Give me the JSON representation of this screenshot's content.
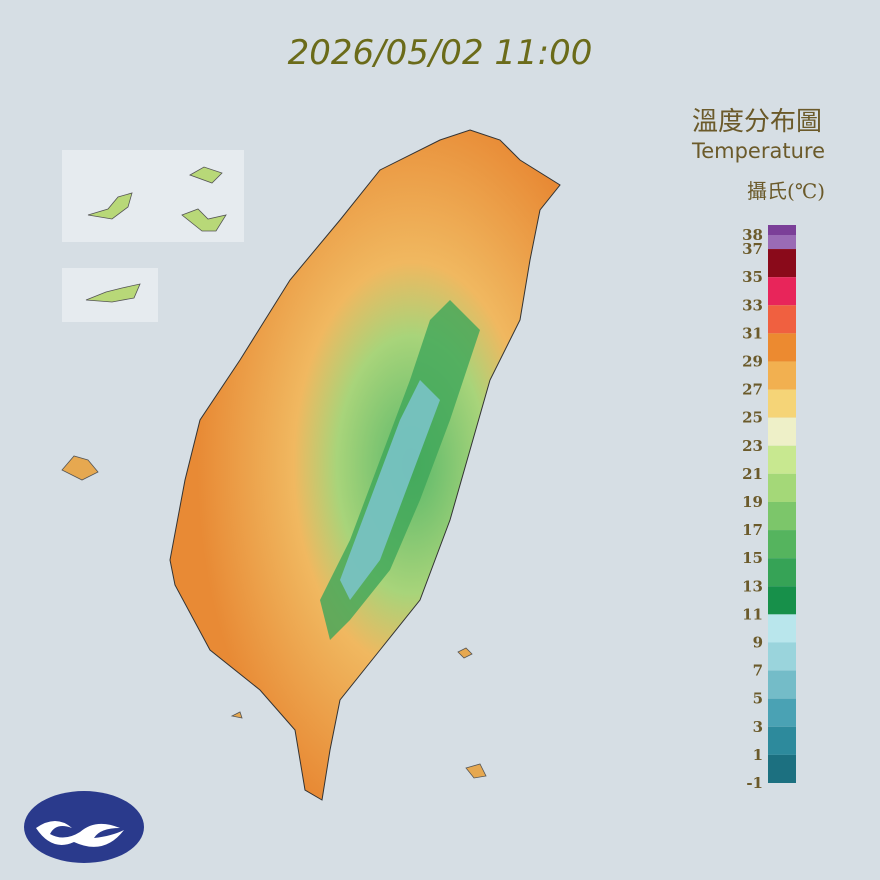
{
  "header": {
    "timestamp": "2026/05/02 11:00"
  },
  "legend": {
    "title_zh": "溫度分布圖",
    "title_en": "Temperature",
    "unit": "攝氏(℃)",
    "labels": [
      38,
      37,
      35,
      33,
      31,
      29,
      27,
      25,
      23,
      21,
      19,
      17,
      15,
      13,
      11,
      9,
      7,
      5,
      3,
      1,
      -1
    ],
    "colors": [
      "#7b3f98",
      "#9a6bb5",
      "#8a0a1a",
      "#e8255a",
      "#f06040",
      "#ec8a30",
      "#f2b050",
      "#f5d477",
      "#eef0c8",
      "#c8e890",
      "#a4d878",
      "#7cc66a",
      "#55b45e",
      "#36a356",
      "#17904a",
      "#b9e6ec",
      "#9ad4dc",
      "#74bcc8",
      "#4aa2b4",
      "#2d8a9c",
      "#1c7080"
    ]
  }
}
